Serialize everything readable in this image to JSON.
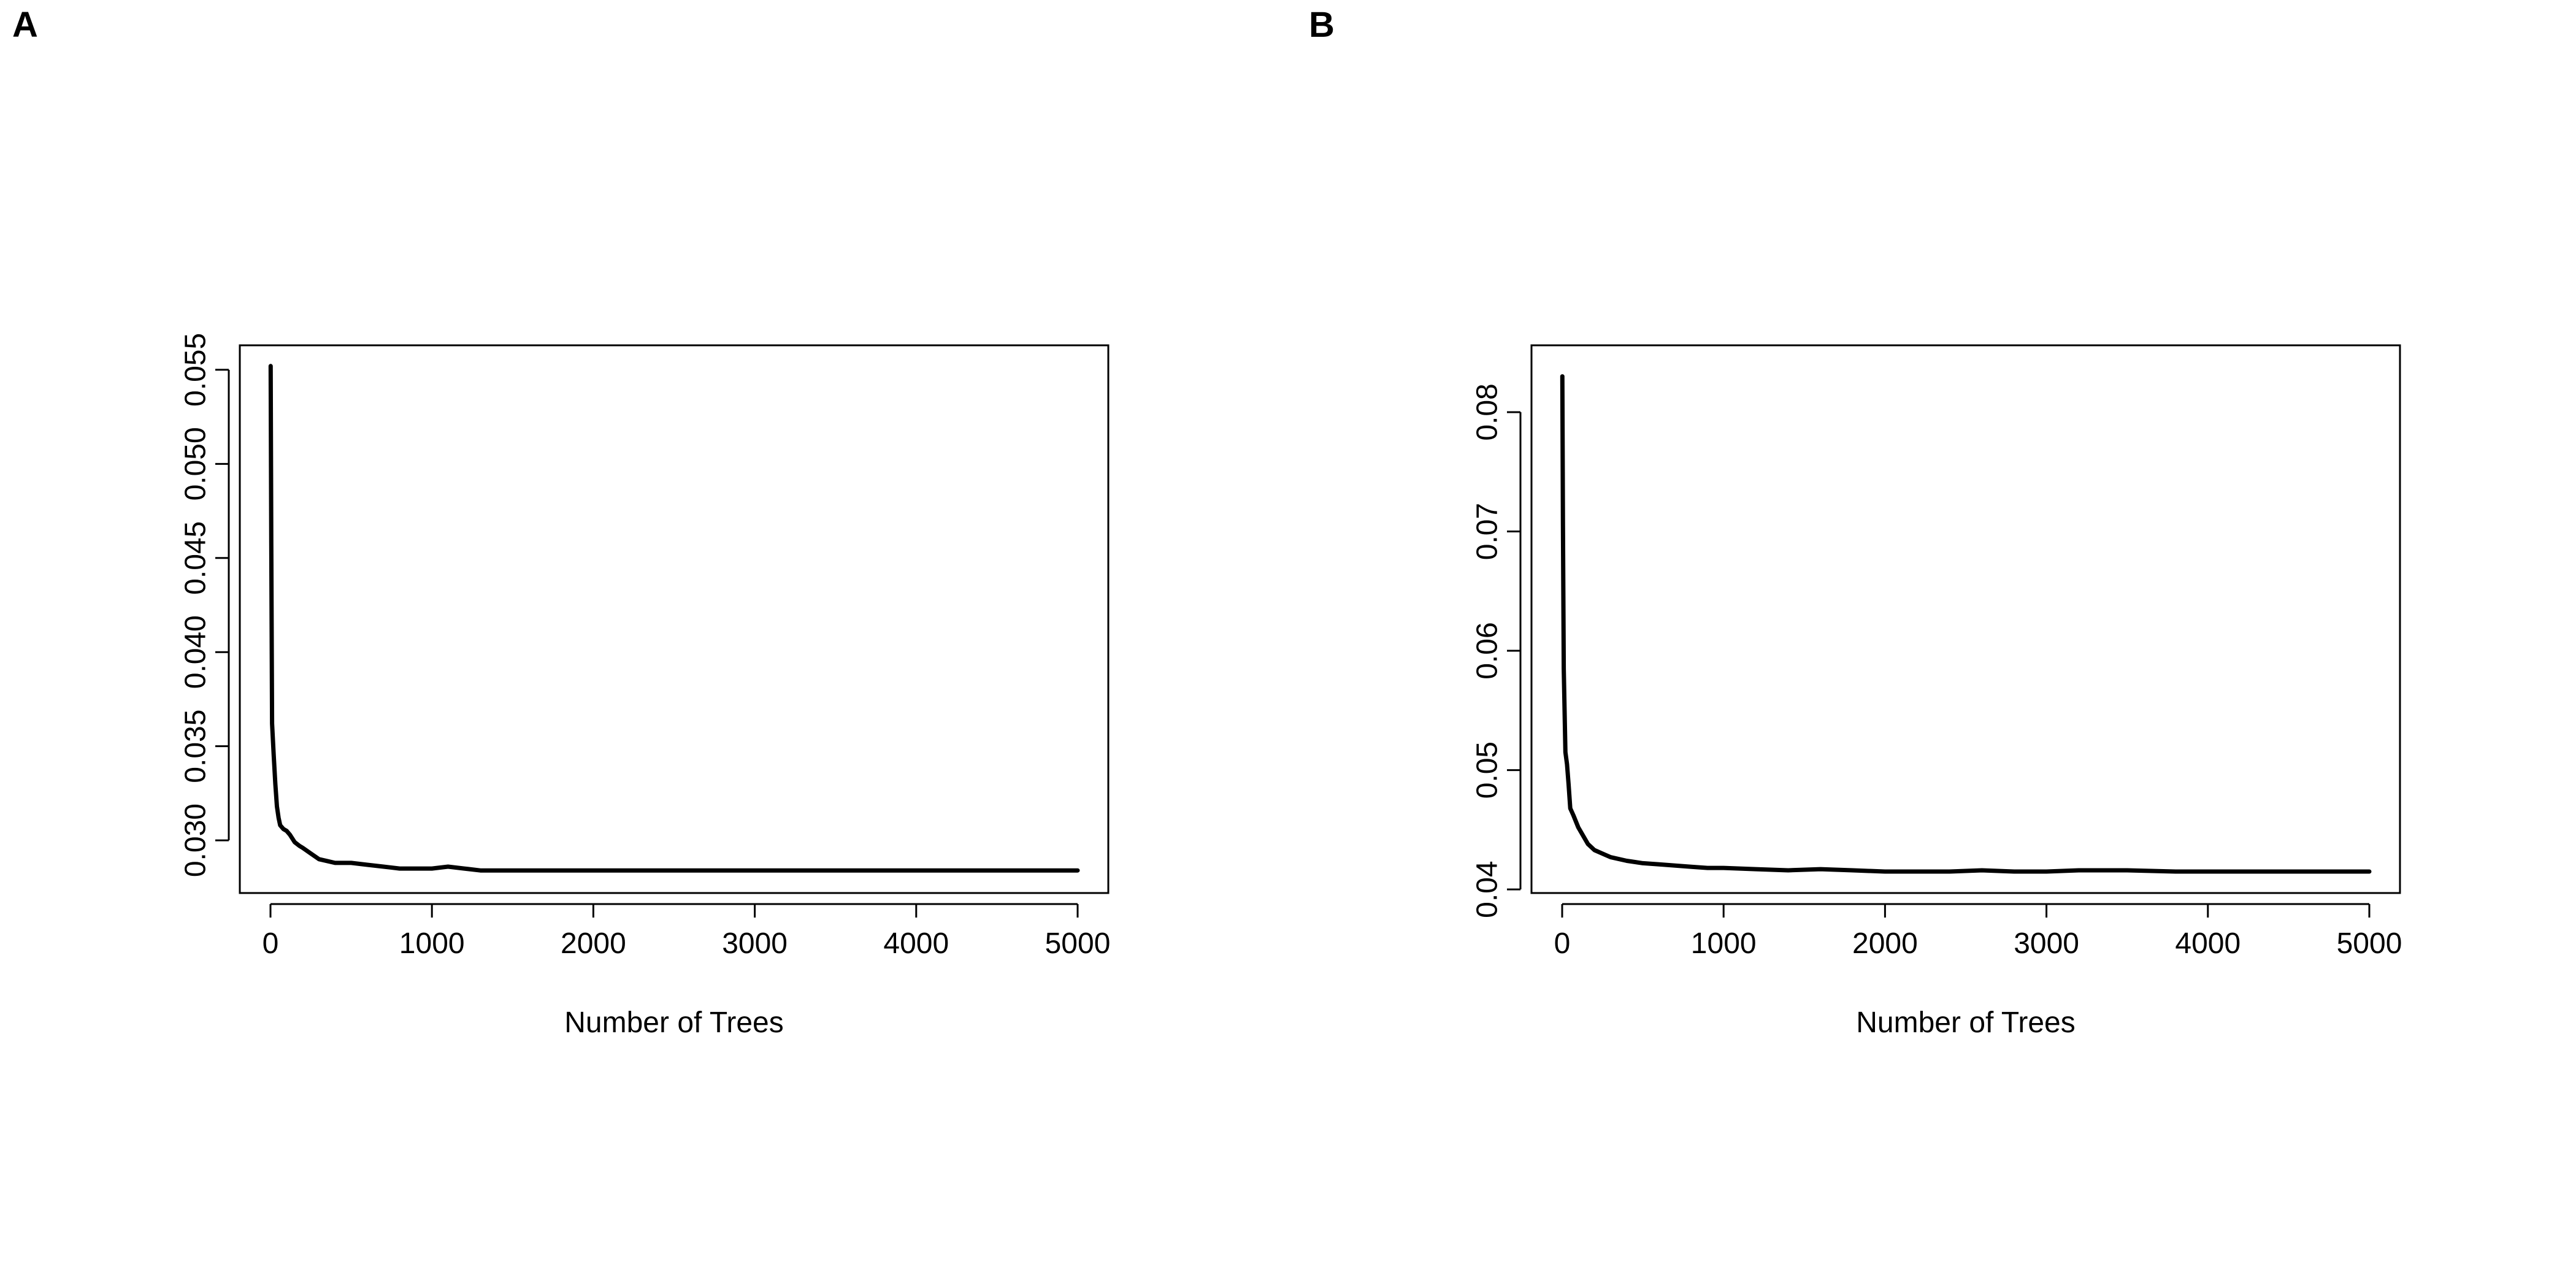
{
  "panels": [
    {
      "label": "A"
    },
    {
      "label": "B"
    }
  ],
  "chart_data": [
    {
      "type": "line",
      "panel": "A",
      "title": "",
      "xlabel": "Number of Trees",
      "ylabel": "",
      "xlim": [
        0,
        5000
      ],
      "ylim": [
        0.0272,
        0.0563
      ],
      "xticks": [
        0,
        1000,
        2000,
        3000,
        4000,
        5000
      ],
      "xtick_labels": [
        "0",
        "1000",
        "2000",
        "3000",
        "4000",
        "5000"
      ],
      "yticks": [
        0.03,
        0.035,
        0.04,
        0.045,
        0.05,
        0.055
      ],
      "ytick_labels": [
        "0.030",
        "0.035",
        "0.040",
        "0.045",
        "0.050",
        "0.055"
      ],
      "grid": false,
      "line_color": "#000000",
      "series": [
        {
          "x": [
            1,
            5,
            10,
            20,
            30,
            40,
            50,
            60,
            80,
            100,
            120,
            150,
            180,
            200,
            250,
            300,
            350,
            400,
            500,
            600,
            700,
            800,
            900,
            1000,
            1100,
            1200,
            1300,
            1400,
            1500,
            1600,
            1800,
            2000,
            2200,
            2400,
            2600,
            2800,
            3000,
            3200,
            3500,
            3800,
            4000,
            4200,
            4500,
            4800,
            5000
          ],
          "values": [
            0.0552,
            0.0458,
            0.0362,
            0.0345,
            0.033,
            0.0318,
            0.0312,
            0.0308,
            0.0306,
            0.0305,
            0.0303,
            0.0299,
            0.0297,
            0.0296,
            0.0293,
            0.029,
            0.0289,
            0.0288,
            0.0288,
            0.0287,
            0.0286,
            0.0285,
            0.0285,
            0.0285,
            0.0286,
            0.0285,
            0.0284,
            0.0284,
            0.0284,
            0.0284,
            0.0284,
            0.0284,
            0.0284,
            0.0284,
            0.0284,
            0.0284,
            0.0284,
            0.0284,
            0.0284,
            0.0284,
            0.0284,
            0.0284,
            0.0284,
            0.0284,
            0.0284
          ]
        }
      ]
    },
    {
      "type": "line",
      "panel": "B",
      "title": "",
      "xlabel": "Number of Trees",
      "ylabel": "",
      "xlim": [
        0,
        5000
      ],
      "ylim": [
        0.0397,
        0.0856
      ],
      "xticks": [
        0,
        1000,
        2000,
        3000,
        4000,
        5000
      ],
      "xtick_labels": [
        "0",
        "1000",
        "2000",
        "3000",
        "4000",
        "5000"
      ],
      "yticks": [
        0.04,
        0.05,
        0.06,
        0.07,
        0.08
      ],
      "ytick_labels": [
        "0.04",
        "0.05",
        "0.06",
        "0.07",
        "0.08"
      ],
      "grid": false,
      "line_color": "#000000",
      "series": [
        {
          "x": [
            1,
            5,
            10,
            20,
            30,
            40,
            50,
            70,
            100,
            130,
            160,
            200,
            250,
            300,
            400,
            500,
            600,
            700,
            800,
            900,
            1000,
            1200,
            1400,
            1600,
            1800,
            2000,
            2200,
            2400,
            2600,
            2800,
            3000,
            3200,
            3500,
            3800,
            4000,
            4200,
            4500,
            4800,
            5000
          ],
          "values": [
            0.083,
            0.0705,
            0.0585,
            0.0515,
            0.0505,
            0.0488,
            0.0468,
            0.0462,
            0.0452,
            0.0445,
            0.0438,
            0.0433,
            0.043,
            0.0427,
            0.0424,
            0.0422,
            0.0421,
            0.042,
            0.0419,
            0.0418,
            0.0418,
            0.0417,
            0.0416,
            0.0417,
            0.0416,
            0.0415,
            0.0415,
            0.0415,
            0.0416,
            0.0415,
            0.0415,
            0.0416,
            0.0416,
            0.0415,
            0.0415,
            0.0415,
            0.0415,
            0.0415,
            0.0415
          ]
        }
      ]
    }
  ]
}
